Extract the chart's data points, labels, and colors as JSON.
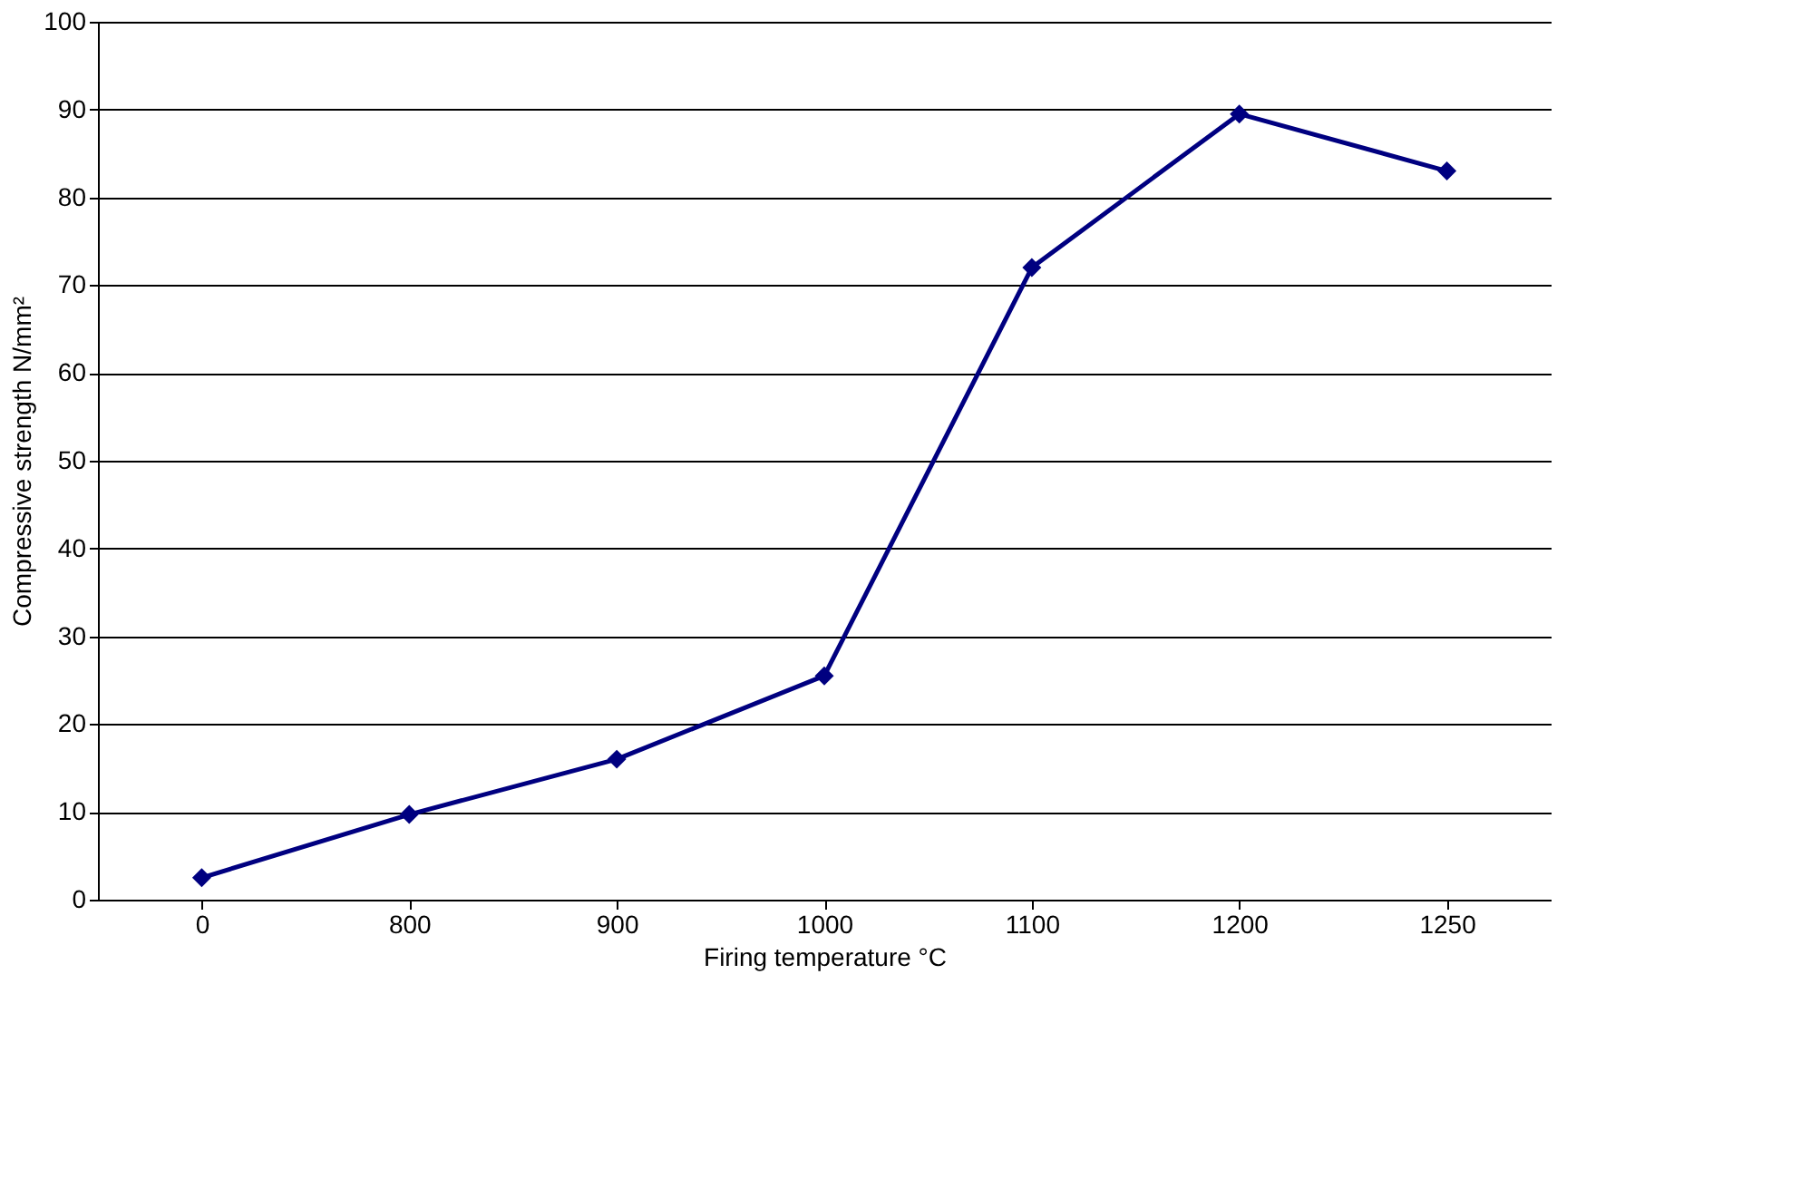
{
  "chart_data": {
    "type": "line",
    "xlabel": "Firing temperature °C",
    "ylabel": "Compressive strength N/mm²",
    "categories": [
      "0",
      "800",
      "900",
      "1000",
      "1100",
      "1200",
      "1250"
    ],
    "series": [
      {
        "color": "#000080",
        "values": [
          2.5,
          9.7,
          16,
          25.5,
          72,
          89.5,
          83
        ]
      }
    ],
    "ylim": [
      0,
      100
    ],
    "yticks": [
      0,
      10,
      20,
      30,
      40,
      50,
      60,
      70,
      80,
      90,
      100
    ],
    "grid": "y",
    "marker": "diamond",
    "line_style": "solid"
  }
}
